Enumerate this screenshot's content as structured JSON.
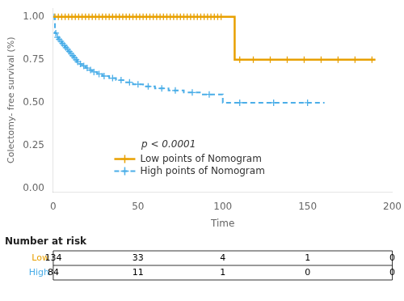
{
  "chart_data": {
    "type": "line",
    "x_label": "Time",
    "y_label": "Colectomy- free survival (%)",
    "series": [
      {
        "name": "Low points of Nomogram",
        "color": "#E8A000",
        "line_style": "solid",
        "marker": "plus",
        "x": [
          0,
          107,
          107,
          190
        ],
        "values": [
          1.0,
          1.0,
          0.75,
          0.75
        ],
        "censor_x": [
          1,
          3,
          5,
          7,
          9,
          11,
          13,
          15,
          17,
          19,
          21,
          23,
          25,
          27,
          29,
          31,
          33,
          35,
          37,
          39,
          41,
          43,
          45,
          47,
          49,
          51,
          53,
          55,
          57,
          59,
          61,
          63,
          65,
          67,
          69,
          71,
          73,
          75,
          77,
          79,
          81,
          83,
          85,
          87,
          89,
          91,
          93,
          95,
          97,
          99,
          110,
          118,
          128,
          138,
          148,
          158,
          168,
          178,
          188
        ],
        "censor_values": [
          1.0,
          1.0,
          1.0,
          1.0,
          1.0,
          1.0,
          1.0,
          1.0,
          1.0,
          1.0,
          1.0,
          1.0,
          1.0,
          1.0,
          1.0,
          1.0,
          1.0,
          1.0,
          1.0,
          1.0,
          1.0,
          1.0,
          1.0,
          1.0,
          1.0,
          1.0,
          1.0,
          1.0,
          1.0,
          1.0,
          1.0,
          1.0,
          1.0,
          1.0,
          1.0,
          1.0,
          1.0,
          1.0,
          1.0,
          1.0,
          1.0,
          1.0,
          1.0,
          1.0,
          1.0,
          1.0,
          1.0,
          1.0,
          1.0,
          1.0,
          0.75,
          0.75,
          0.75,
          0.75,
          0.75,
          0.75,
          0.75,
          0.75,
          0.75
        ]
      },
      {
        "name": "High points of Nomogram",
        "color": "#4BAEE8",
        "line_style": "dashed",
        "marker": "plus",
        "x": [
          0,
          1,
          1,
          2,
          2,
          3,
          3,
          4,
          4,
          5,
          5,
          6,
          6,
          7,
          7,
          8,
          8,
          9,
          9,
          10,
          10,
          11,
          11,
          12,
          12,
          13,
          13,
          14,
          14,
          15,
          15,
          17,
          17,
          19,
          19,
          21,
          21,
          23,
          23,
          26,
          26,
          29,
          29,
          33,
          33,
          37,
          37,
          42,
          42,
          47,
          47,
          53,
          53,
          60,
          60,
          68,
          68,
          77,
          77,
          87,
          87,
          100,
          100,
          160
        ],
        "values": [
          1.0,
          1.0,
          0.905,
          0.905,
          0.881,
          0.881,
          0.869,
          0.869,
          0.857,
          0.857,
          0.845,
          0.845,
          0.833,
          0.833,
          0.821,
          0.821,
          0.81,
          0.81,
          0.798,
          0.798,
          0.786,
          0.786,
          0.774,
          0.774,
          0.762,
          0.762,
          0.75,
          0.75,
          0.738,
          0.738,
          0.726,
          0.726,
          0.714,
          0.714,
          0.702,
          0.702,
          0.69,
          0.69,
          0.679,
          0.679,
          0.667,
          0.667,
          0.655,
          0.655,
          0.643,
          0.643,
          0.631,
          0.631,
          0.619,
          0.619,
          0.607,
          0.607,
          0.595,
          0.595,
          0.583,
          0.583,
          0.571,
          0.571,
          0.559,
          0.559,
          0.548,
          0.548,
          0.5,
          0.5
        ],
        "censor_x": [
          0.5,
          1.5,
          2.5,
          3.5,
          4.5,
          5.5,
          6.5,
          7.5,
          8.5,
          9.5,
          10.5,
          11.5,
          12.5,
          13.5,
          14.5,
          16,
          18,
          20,
          22,
          24,
          27,
          30,
          35,
          40,
          45,
          50,
          56,
          64,
          72,
          82,
          92,
          110,
          130,
          150
        ],
        "censor_values": [
          1.0,
          0.905,
          0.881,
          0.869,
          0.857,
          0.845,
          0.833,
          0.821,
          0.81,
          0.798,
          0.786,
          0.774,
          0.762,
          0.75,
          0.738,
          0.726,
          0.714,
          0.702,
          0.69,
          0.679,
          0.667,
          0.655,
          0.643,
          0.631,
          0.619,
          0.607,
          0.595,
          0.583,
          0.571,
          0.559,
          0.548,
          0.5,
          0.5,
          0.5
        ]
      }
    ],
    "xlim": [
      0,
      200
    ],
    "xticks": [
      0,
      50,
      100,
      150,
      200
    ],
    "ylim": [
      -0.02,
      1.05
    ],
    "yticks": [
      {
        "value": 0.0,
        "label": "0.00"
      },
      {
        "value": 0.25,
        "label": "0.25"
      },
      {
        "value": 0.5,
        "label": "0.50"
      },
      {
        "value": 0.75,
        "label": "0.75"
      },
      {
        "value": 1.0,
        "label": "1.00"
      }
    ],
    "grid": false,
    "legend": "lower left",
    "annotations": [
      "p < 0.0001"
    ],
    "risk_table": {
      "title": "Number at risk",
      "labels": [
        "Low",
        "High"
      ],
      "label_colors": [
        "#E8A000",
        "#4BAEE8"
      ],
      "times": [
        0,
        50,
        100,
        150,
        200
      ],
      "counts": [
        [
          134,
          33,
          4,
          1,
          0
        ],
        [
          84,
          11,
          1,
          0,
          0
        ]
      ]
    }
  }
}
